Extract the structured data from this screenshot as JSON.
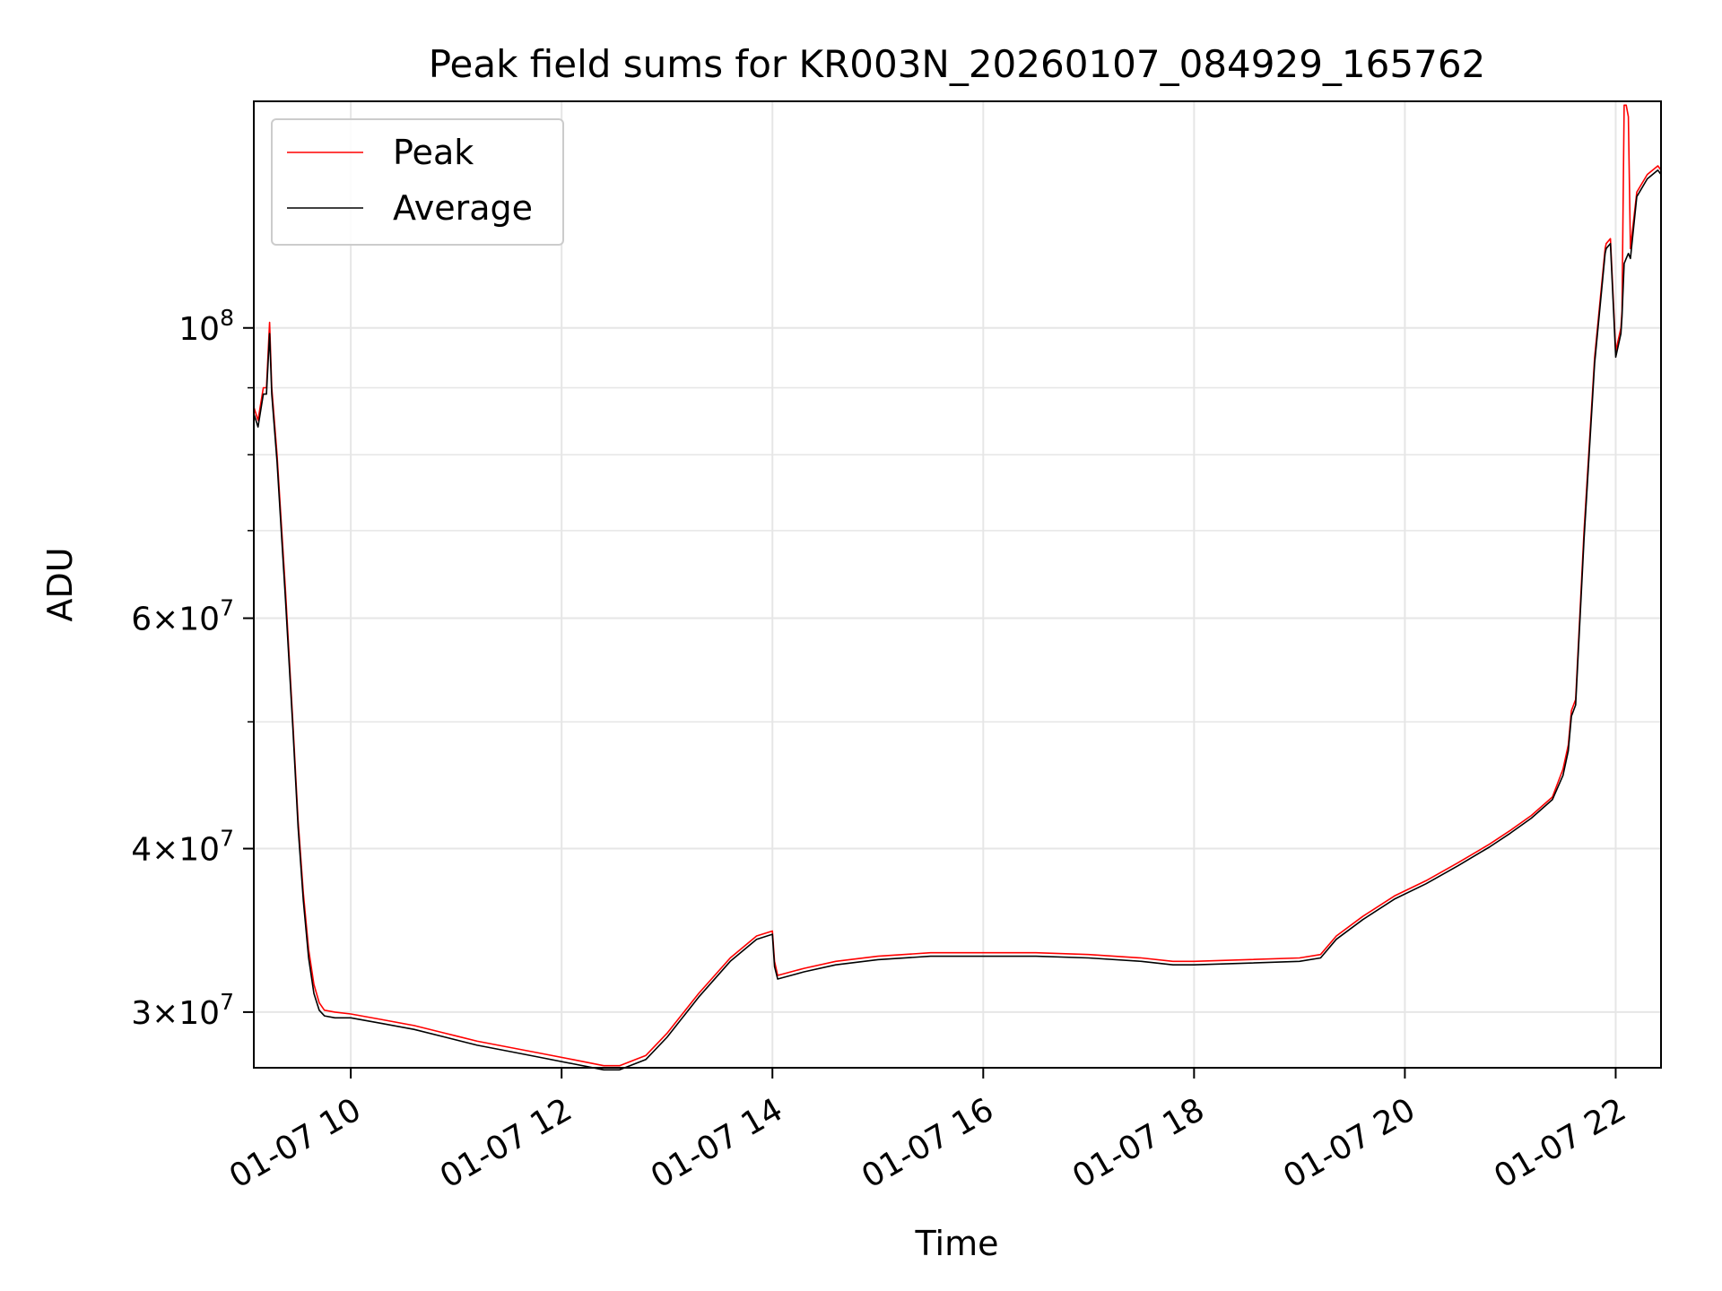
{
  "chart_data": {
    "type": "line",
    "title": "Peak field sums for KR003N_20260107_084929_165762",
    "xlabel": "Time",
    "ylabel": "ADU",
    "x_unit": "hour of 2026-01-07",
    "xlim": [
      9.08,
      22.43
    ],
    "ylim": [
      27200000,
      149000000
    ],
    "y_scale": "log",
    "grid": true,
    "legend_position": "top-left",
    "x_ticks": [
      {
        "value": 10,
        "label": "01-07 10"
      },
      {
        "value": 12,
        "label": "01-07 12"
      },
      {
        "value": 14,
        "label": "01-07 14"
      },
      {
        "value": 16,
        "label": "01-07 16"
      },
      {
        "value": 18,
        "label": "01-07 18"
      },
      {
        "value": 20,
        "label": "01-07 20"
      },
      {
        "value": 22,
        "label": "01-07 22"
      }
    ],
    "y_ticks": [
      {
        "value": 30000000,
        "mantissa": "3",
        "exp": "7"
      },
      {
        "value": 40000000,
        "mantissa": "4",
        "exp": "7"
      },
      {
        "value": 60000000,
        "mantissa": "6",
        "exp": "7"
      },
      {
        "value": 100000000,
        "mantissa": "",
        "exp": "8"
      }
    ],
    "y_minor_ticks": [
      50000000,
      70000000,
      80000000,
      90000000
    ],
    "colors": {
      "peak": "#ff0000",
      "average": "#000000",
      "grid": "#e6e6e6"
    },
    "series": [
      {
        "name": "Peak",
        "x": [
          9.08,
          9.12,
          9.17,
          9.2,
          9.23,
          9.25,
          9.3,
          9.38,
          9.45,
          9.5,
          9.55,
          9.6,
          9.65,
          9.7,
          9.75,
          9.85,
          10.0,
          10.3,
          10.6,
          10.9,
          11.2,
          11.5,
          11.8,
          12.1,
          12.4,
          12.55,
          12.8,
          13.0,
          13.3,
          13.6,
          13.85,
          14.0,
          14.02,
          14.05,
          14.3,
          14.6,
          15.0,
          15.5,
          16.0,
          16.5,
          17.0,
          17.5,
          17.8,
          18.0,
          18.5,
          19.0,
          19.2,
          19.35,
          19.6,
          19.9,
          20.2,
          20.5,
          20.8,
          21.0,
          21.2,
          21.4,
          21.5,
          21.55,
          21.58,
          21.62,
          21.7,
          21.8,
          21.9,
          21.91,
          21.95,
          22.0,
          22.05,
          22.06,
          22.08,
          22.1,
          22.12,
          22.14,
          22.2,
          22.3,
          22.4,
          22.43
        ],
        "y": [
          87000000,
          85000000,
          90000000,
          90000000,
          101000000,
          90000000,
          80000000,
          63000000,
          50000000,
          42000000,
          37000000,
          33500000,
          31500000,
          30500000,
          30100000,
          30000000,
          29900000,
          29600000,
          29300000,
          28900000,
          28500000,
          28200000,
          27900000,
          27600000,
          27300000,
          27300000,
          27800000,
          28900000,
          31000000,
          33000000,
          34300000,
          34600000,
          32800000,
          32000000,
          32400000,
          32800000,
          33100000,
          33300000,
          33300000,
          33300000,
          33200000,
          33000000,
          32800000,
          32800000,
          32900000,
          33000000,
          33200000,
          34300000,
          35500000,
          36800000,
          37800000,
          39000000,
          40300000,
          41300000,
          42400000,
          43800000,
          46000000,
          48000000,
          51000000,
          52000000,
          70000000,
          95000000,
          115000000,
          116000000,
          117000000,
          96000000,
          100000000,
          103000000,
          148000000,
          148000000,
          145000000,
          115000000,
          127000000,
          131000000,
          133000000,
          132000000
        ]
      },
      {
        "name": "Average",
        "x": [
          9.08,
          9.12,
          9.17,
          9.2,
          9.23,
          9.25,
          9.3,
          9.38,
          9.45,
          9.5,
          9.55,
          9.6,
          9.65,
          9.7,
          9.75,
          9.85,
          10.0,
          10.3,
          10.6,
          10.9,
          11.2,
          11.5,
          11.8,
          12.1,
          12.4,
          12.55,
          12.8,
          13.0,
          13.3,
          13.6,
          13.85,
          14.0,
          14.02,
          14.05,
          14.3,
          14.6,
          15.0,
          15.5,
          16.0,
          16.5,
          17.0,
          17.5,
          17.8,
          18.0,
          18.5,
          19.0,
          19.2,
          19.35,
          19.6,
          19.9,
          20.2,
          20.5,
          20.8,
          21.0,
          21.2,
          21.4,
          21.5,
          21.55,
          21.58,
          21.62,
          21.7,
          21.8,
          21.9,
          21.91,
          21.95,
          22.0,
          22.05,
          22.06,
          22.08,
          22.1,
          22.12,
          22.14,
          22.2,
          22.3,
          22.4,
          22.43
        ],
        "y": [
          86000000,
          84000000,
          89000000,
          89000000,
          99000000,
          89000000,
          79000000,
          62000000,
          49500000,
          41500000,
          36500000,
          33000000,
          31000000,
          30100000,
          29800000,
          29700000,
          29700000,
          29400000,
          29100000,
          28700000,
          28300000,
          28000000,
          27700000,
          27400000,
          27100000,
          27100000,
          27600000,
          28700000,
          30800000,
          32800000,
          34100000,
          34400000,
          32500000,
          31800000,
          32200000,
          32600000,
          32900000,
          33100000,
          33100000,
          33100000,
          33000000,
          32800000,
          32600000,
          32600000,
          32700000,
          32800000,
          33000000,
          34100000,
          35300000,
          36600000,
          37600000,
          38800000,
          40100000,
          41100000,
          42200000,
          43600000,
          45500000,
          47500000,
          50500000,
          51500000,
          69000000,
          94000000,
          114000000,
          115000000,
          116000000,
          95000000,
          99000000,
          102000000,
          112000000,
          113000000,
          114000000,
          113000000,
          126000000,
          130000000,
          132000000,
          131000000
        ]
      }
    ]
  }
}
